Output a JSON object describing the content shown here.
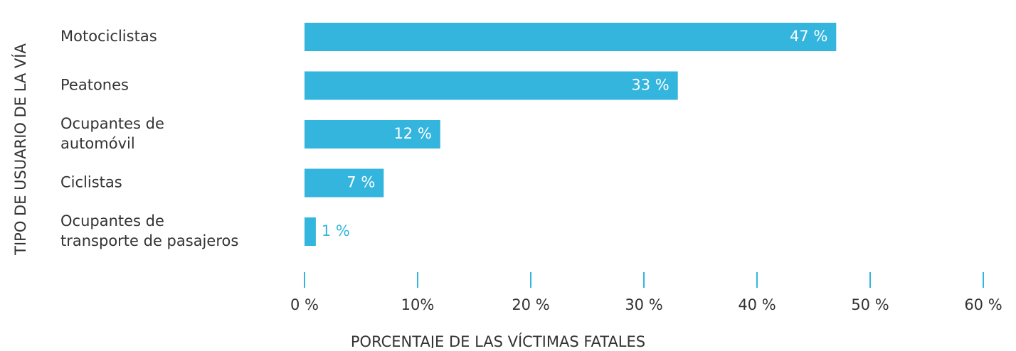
{
  "chart_data": {
    "type": "hbar",
    "xlabel": "PORCENTAJE DE LAS VÍCTIMAS FATALES",
    "ylabel": "TIPO DE USUARIO DE LA VÍA",
    "categories": [
      "Motociclistas",
      "Peatones",
      "Ocupantes de\nautomóvil",
      "Ciclistas",
      "Ocupantes de\ntransporte de pasajeros"
    ],
    "values": [
      47,
      33,
      12,
      7,
      1
    ],
    "value_labels": [
      "47 %",
      "33 %",
      "12 %",
      "7 %",
      "1 %"
    ],
    "color": "#33b5dd",
    "xlim": [
      0,
      60
    ],
    "xticks": [
      {
        "value": 0,
        "label": "0 %"
      },
      {
        "value": 10,
        "label": "10%"
      },
      {
        "value": 20,
        "label": "20 %"
      },
      {
        "value": 30,
        "label": "30 %"
      },
      {
        "value": 40,
        "label": "40 %"
      },
      {
        "value": 50,
        "label": "50 %"
      },
      {
        "value": 60,
        "label": "60 %"
      }
    ]
  }
}
